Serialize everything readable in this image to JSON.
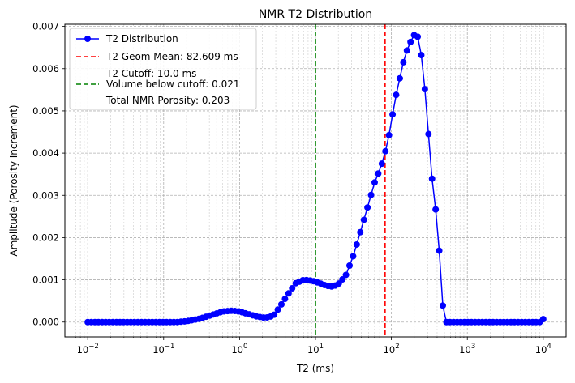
{
  "chart_data": {
    "type": "line",
    "title": "NMR T2 Distribution",
    "xlabel": "T2 (ms)",
    "ylabel": "Amplitude (Porosity Increment)",
    "xscale": "log",
    "xlim": [
      0.005,
      20000
    ],
    "ylim": [
      -0.00035,
      0.00705
    ],
    "grid": true,
    "legend_position": "top-left",
    "x_ticks": [
      {
        "value": 0.01,
        "base": "10",
        "exp": "−2"
      },
      {
        "value": 0.1,
        "base": "10",
        "exp": "−1"
      },
      {
        "value": 1,
        "base": "10",
        "exp": "0"
      },
      {
        "value": 10,
        "base": "10",
        "exp": "1"
      },
      {
        "value": 100,
        "base": "10",
        "exp": "2"
      },
      {
        "value": 1000,
        "base": "10",
        "exp": "3"
      },
      {
        "value": 10000,
        "base": "10",
        "exp": "4"
      }
    ],
    "y_ticks": [
      {
        "value": 0.0,
        "label": "0.000"
      },
      {
        "value": 0.001,
        "label": "0.001"
      },
      {
        "value": 0.002,
        "label": "0.002"
      },
      {
        "value": 0.003,
        "label": "0.003"
      },
      {
        "value": 0.004,
        "label": "0.004"
      },
      {
        "value": 0.005,
        "label": "0.005"
      },
      {
        "value": 0.006,
        "label": "0.006"
      },
      {
        "value": 0.007,
        "label": "0.007"
      }
    ],
    "series": [
      {
        "name": "T2 Distribution",
        "color": "#0000ff",
        "marker": "circle",
        "count": 128,
        "x_start": 0.01,
        "x_end": 10000,
        "y_anchors": [
          [
            0.01,
            0.0
          ],
          [
            0.15,
            0.0
          ],
          [
            0.2,
            2e-05
          ],
          [
            0.3,
            8e-05
          ],
          [
            0.45,
            0.00018
          ],
          [
            0.6,
            0.00025
          ],
          [
            0.8,
            0.00027
          ],
          [
            1.0,
            0.00025
          ],
          [
            1.3,
            0.00019
          ],
          [
            1.7,
            0.00013
          ],
          [
            2.2,
            0.0001
          ],
          [
            2.8,
            0.00015
          ],
          [
            3.5,
            0.0004
          ],
          [
            4.5,
            0.0007
          ],
          [
            5.5,
            0.00092
          ],
          [
            7.0,
            0.001
          ],
          [
            9.0,
            0.00098
          ],
          [
            11.0,
            0.00093
          ],
          [
            13.0,
            0.00088
          ],
          [
            15.0,
            0.00085
          ],
          [
            17.0,
            0.00084
          ],
          [
            20.0,
            0.0009
          ],
          [
            25.0,
            0.0011
          ],
          [
            32.0,
            0.0016
          ],
          [
            40.0,
            0.0022
          ],
          [
            50.0,
            0.0028
          ],
          [
            60.0,
            0.0033
          ],
          [
            70.0,
            0.0036
          ],
          [
            80.0,
            0.0039
          ],
          [
            95.0,
            0.0045
          ],
          [
            110.0,
            0.0052
          ],
          [
            130.0,
            0.0058
          ],
          [
            150.0,
            0.0063
          ],
          [
            175.0,
            0.0066
          ],
          [
            200.0,
            0.0068
          ],
          [
            225.0,
            0.00675
          ],
          [
            260.0,
            0.0061
          ],
          [
            300.0,
            0.0047
          ],
          [
            350.0,
            0.0032
          ],
          [
            400.0,
            0.0024
          ],
          [
            430.0,
            0.0016
          ],
          [
            460.0,
            0.00065
          ],
          [
            500.0,
            0.0
          ],
          [
            9000.0,
            0.0
          ],
          [
            10000.0,
            7e-05
          ]
        ]
      }
    ],
    "vlines": [
      {
        "name": "T2 Geom Mean: 82.609 ms",
        "x": 82.609,
        "color": "#ff0000",
        "style": "dashed"
      },
      {
        "name": "T2 Cutoff: 10.0 ms",
        "x": 10.0,
        "color": "#008000",
        "style": "dashed"
      }
    ],
    "legend": [
      {
        "kind": "line-marker",
        "color": "#0000ff",
        "label": "T2 Distribution"
      },
      {
        "kind": "dashed",
        "color": "#ff0000",
        "label": "T2 Geom Mean: 82.609 ms"
      },
      {
        "kind": "none",
        "color": "",
        "label": "T2 Cutoff: 10.0 ms"
      },
      {
        "kind": "dashed",
        "color": "#008000",
        "label": "Volume below cutoff: 0.021"
      },
      {
        "kind": "none",
        "color": "",
        "label": "Total NMR Porosity: 0.203"
      }
    ]
  }
}
